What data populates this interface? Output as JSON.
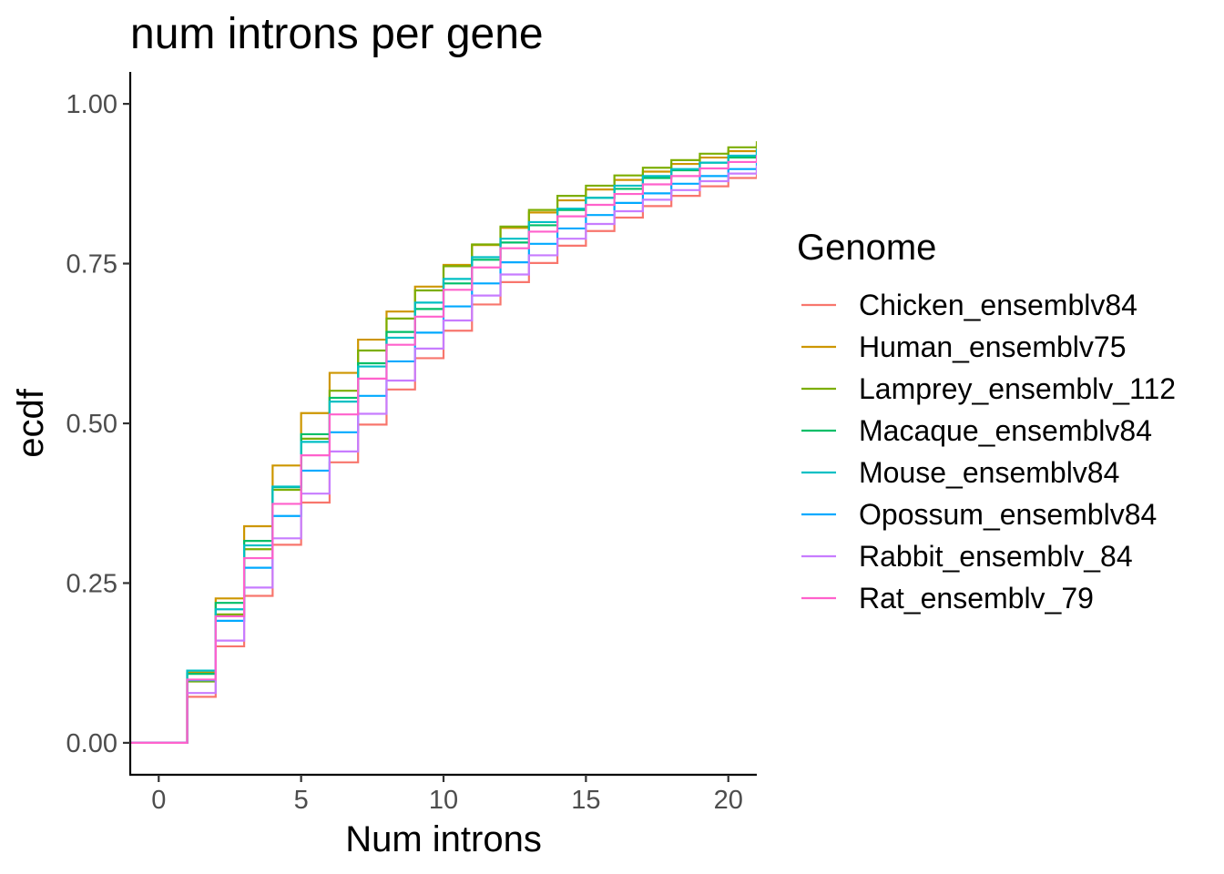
{
  "chart_data": {
    "type": "line",
    "step": true,
    "title": "num introns per gene",
    "xlabel": "Num introns",
    "ylabel": "ecdf",
    "xlim": [
      -1,
      21
    ],
    "ylim": [
      -0.05,
      1.05
    ],
    "xticks": [
      0,
      5,
      10,
      15,
      20
    ],
    "xtick_labels": [
      "0",
      "5",
      "10",
      "15",
      "20"
    ],
    "yticks": [
      0,
      0.25,
      0.5,
      0.75,
      1
    ],
    "ytick_labels": [
      "0.00",
      "0.25",
      "0.50",
      "0.75",
      "1.00"
    ],
    "grid": false,
    "legend": {
      "title": "Genome",
      "position": "right"
    },
    "x": [
      1,
      2,
      3,
      4,
      5,
      6,
      7,
      8,
      9,
      10,
      11,
      12,
      13,
      14,
      15,
      16,
      17,
      18,
      19,
      20,
      21
    ],
    "series": [
      {
        "name": "Chicken_ensemblv84",
        "color": "#F8766D",
        "values": [
          0.072,
          0.151,
          0.23,
          0.31,
          0.376,
          0.439,
          0.498,
          0.553,
          0.602,
          0.645,
          0.686,
          0.721,
          0.751,
          0.778,
          0.801,
          0.822,
          0.84,
          0.856,
          0.871,
          0.884,
          0.896
        ]
      },
      {
        "name": "Human_ensemblv75",
        "color": "#CD9600",
        "values": [
          0.11,
          0.226,
          0.339,
          0.434,
          0.516,
          0.579,
          0.631,
          0.675,
          0.714,
          0.748,
          0.779,
          0.806,
          0.83,
          0.849,
          0.866,
          0.881,
          0.894,
          0.906,
          0.916,
          0.926,
          0.934
        ]
      },
      {
        "name": "Lamprey_ensemblv_112",
        "color": "#7CAE00",
        "values": [
          0.096,
          0.201,
          0.303,
          0.396,
          0.476,
          0.551,
          0.614,
          0.664,
          0.708,
          0.746,
          0.78,
          0.808,
          0.834,
          0.856,
          0.872,
          0.888,
          0.9,
          0.912,
          0.922,
          0.932,
          0.94
        ]
      },
      {
        "name": "Macaque_ensemblv84",
        "color": "#00BE67",
        "values": [
          0.108,
          0.219,
          0.316,
          0.4,
          0.483,
          0.54,
          0.594,
          0.643,
          0.679,
          0.719,
          0.756,
          0.783,
          0.81,
          0.834,
          0.853,
          0.867,
          0.884,
          0.896,
          0.908,
          0.916,
          0.926
        ]
      },
      {
        "name": "Mouse_ensemblv84",
        "color": "#00BFC4",
        "values": [
          0.113,
          0.209,
          0.309,
          0.401,
          0.471,
          0.534,
          0.589,
          0.634,
          0.689,
          0.726,
          0.76,
          0.789,
          0.815,
          0.836,
          0.853,
          0.872,
          0.887,
          0.898,
          0.908,
          0.919,
          0.928
        ]
      },
      {
        "name": "Opossum_ensemblv84",
        "color": "#00A9FF",
        "values": [
          0.098,
          0.191,
          0.274,
          0.355,
          0.426,
          0.486,
          0.543,
          0.597,
          0.642,
          0.683,
          0.719,
          0.752,
          0.781,
          0.805,
          0.826,
          0.845,
          0.86,
          0.875,
          0.887,
          0.898,
          0.908
        ]
      },
      {
        "name": "Rabbit_ensemblv_84",
        "color": "#C77CFF",
        "values": [
          0.078,
          0.16,
          0.243,
          0.32,
          0.39,
          0.456,
          0.515,
          0.567,
          0.617,
          0.661,
          0.7,
          0.733,
          0.763,
          0.789,
          0.812,
          0.832,
          0.85,
          0.865,
          0.879,
          0.891,
          0.902
        ]
      },
      {
        "name": "Rat_ensemblv_79",
        "color": "#FF61CC",
        "values": [
          0.099,
          0.198,
          0.289,
          0.374,
          0.45,
          0.514,
          0.57,
          0.623,
          0.667,
          0.709,
          0.744,
          0.774,
          0.8,
          0.824,
          0.842,
          0.859,
          0.874,
          0.887,
          0.899,
          0.909,
          0.918
        ]
      }
    ]
  }
}
